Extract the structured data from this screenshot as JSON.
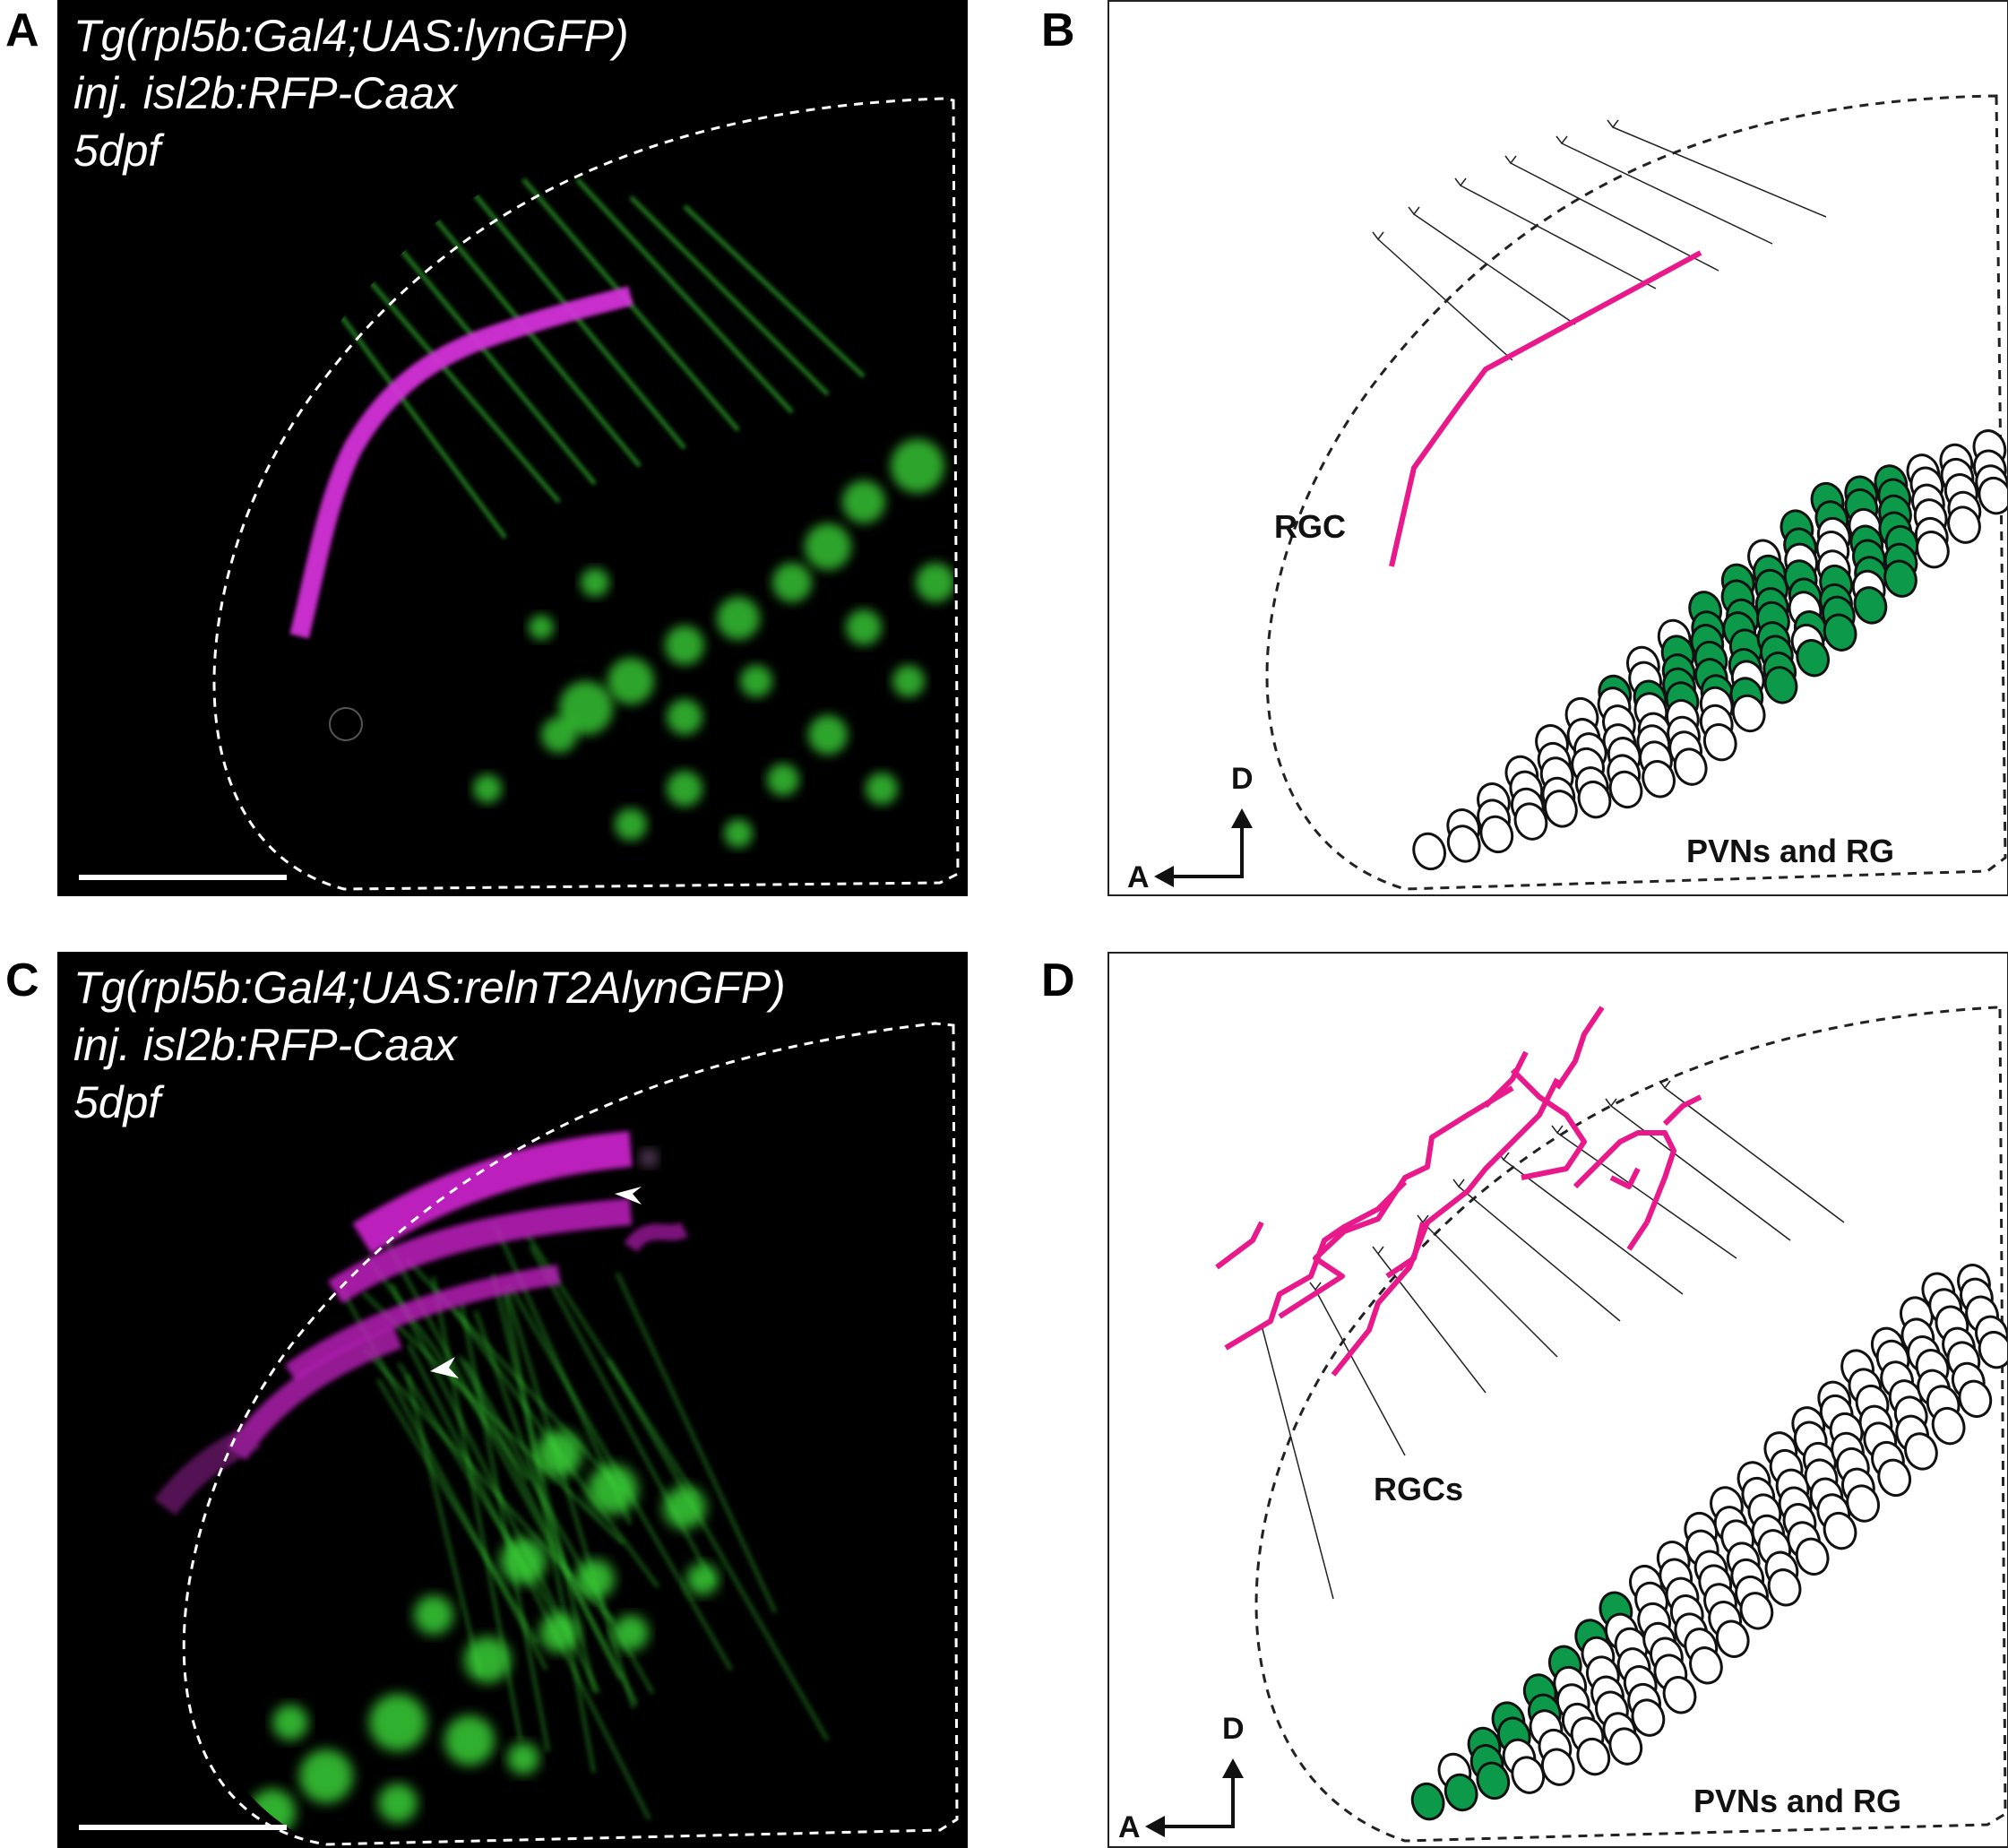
{
  "panels": {
    "A": {
      "letter": "A",
      "caption": [
        "Tg(rpl5b:Gal4;UAS:lynGFP)",
        "inj. isl2b:RFP-Caax",
        "5dpf"
      ]
    },
    "B": {
      "letter": "B",
      "label_cell": "RGC",
      "label_cluster": "PVNs and RG",
      "axis_d": "D",
      "axis_a": "A"
    },
    "C": {
      "letter": "C",
      "caption": [
        "Tg(rpl5b:Gal4;UAS:relnT2AlynGFP)",
        "inj. isl2b:RFP-Caax",
        "5dpf"
      ]
    },
    "D": {
      "letter": "D",
      "label_cell": "RGCs",
      "label_cluster": "PVNs and RG",
      "axis_d": "D",
      "axis_a": "A"
    }
  },
  "colors": {
    "gfp": "#3ddc3a",
    "rfp": "#e020e0",
    "rgc_axon": "#e8198b",
    "cell_fill": "#0c9a4a",
    "background_dark": "#000000"
  }
}
